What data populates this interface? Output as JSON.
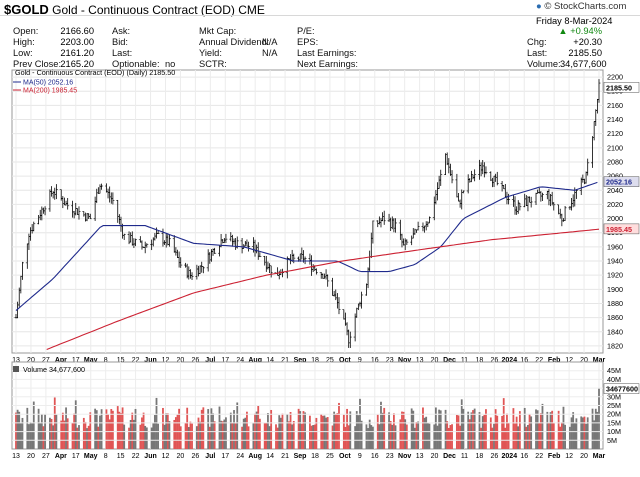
{
  "header": {
    "symbol": "$GOLD",
    "name": "Gold - Continuous Contract (EOD)",
    "exchange": "CME",
    "brand": "StockCharts.com",
    "date": "Friday   8-Mar-2024"
  },
  "quote": {
    "open_label": "Open:",
    "open": "2166.60",
    "high_label": "High:",
    "high": "2203.00",
    "low_label": "Low:",
    "low": "2161.20",
    "prev_label": "Prev Close:",
    "prev": "2165.20",
    "ask_label": "Ask:",
    "ask": "",
    "bid_label": "Bid:",
    "bid": "",
    "last_label": "Last:",
    "last_mid": "",
    "opt_label": "Optionable:",
    "opt": "no",
    "mktcap_label": "Mkt Cap:",
    "mktcap": "",
    "div_label": "Annual Dividend:",
    "div": "N/A",
    "yield_label": "Yield:",
    "yield": "N/A",
    "sctr_label": "SCTR:",
    "sctr": "",
    "pe_label": "P/E:",
    "pe": "",
    "eps_label": "EPS:",
    "eps": "",
    "lastearn_label": "Last Earnings:",
    "lastearn": "",
    "nextearn_label": "Next Earnings:",
    "nextearn": "",
    "pct_change": "+0.94%",
    "chg_label": "Chg:",
    "chg": "+20.30",
    "last2_label": "Last:",
    "last2": "2185.50",
    "volume_label": "Volume:",
    "volume": "34,677,600"
  },
  "chart_data": [
    {
      "type": "line",
      "legend": [
        {
          "text": "Gold - Continuous Contract (EOD) (Daily) 2185.50",
          "color": "#000000"
        },
        {
          "text": "MA(50) 2052.16",
          "color": "#1f2a8c"
        },
        {
          "text": "MA(200) 1985.45",
          "color": "#cc2233"
        }
      ],
      "ylim": [
        1810,
        2210
      ],
      "y_ticks": [
        1820,
        1840,
        1860,
        1880,
        1900,
        1920,
        1940,
        1960,
        1980,
        2000,
        2020,
        2040,
        2060,
        2080,
        2100,
        2120,
        2140,
        2160,
        2180,
        2200
      ],
      "last_price_label": "2185.50",
      "ma50_label": "2052.16",
      "ma200_label": "1985.45",
      "x_ticks": [
        "13",
        "20",
        "27",
        "Apr",
        "17",
        "May",
        "8",
        "15",
        "22",
        "Jun",
        "12",
        "20",
        "26",
        "Jul",
        "17",
        "24",
        "Aug",
        "14",
        "21",
        "Sep",
        "18",
        "25",
        "Oct",
        "9",
        "16",
        "23",
        "Nov",
        "13",
        "20",
        "Dec",
        "11",
        "18",
        "26",
        "2024",
        "16",
        "22",
        "Feb",
        "12",
        "20",
        "Mar"
      ],
      "price_anchors": {
        "x": [
          "2023-03-13",
          "2023-03-17",
          "2023-03-21",
          "2023-04-05",
          "2023-04-13",
          "2023-04-28",
          "2023-05-04",
          "2023-05-12",
          "2023-05-19",
          "2023-05-30",
          "2023-06-09",
          "2023-06-16",
          "2023-06-23",
          "2023-06-29",
          "2023-07-07",
          "2023-07-13",
          "2023-07-20",
          "2023-07-27",
          "2023-08-07",
          "2023-08-21",
          "2023-08-29",
          "2023-09-07",
          "2023-09-14",
          "2023-09-20",
          "2023-09-28",
          "2023-10-05",
          "2023-10-12",
          "2023-10-16",
          "2023-10-20",
          "2023-10-27",
          "2023-11-03",
          "2023-11-08",
          "2023-11-16",
          "2023-11-24",
          "2023-12-01",
          "2023-12-04",
          "2023-12-12",
          "2023-12-15",
          "2023-12-21",
          "2023-12-27",
          "2024-01-08",
          "2024-01-17",
          "2024-01-24",
          "2024-02-05",
          "2024-02-14",
          "2024-02-21",
          "2024-02-29",
          "2024-03-05",
          "2024-03-08"
        ],
        "y": [
          1860,
          1935,
          1980,
          2040,
          2020,
          2000,
          2050,
          2025,
          1975,
          1960,
          1975,
          1965,
          1935,
          1920,
          1935,
          1955,
          1975,
          1965,
          1960,
          1920,
          1940,
          1945,
          1930,
          1920,
          1880,
          1830,
          1885,
          1910,
          1990,
          2000,
          1990,
          1960,
          1980,
          2000,
          2060,
          2090,
          2020,
          2040,
          2060,
          2075,
          2040,
          2015,
          2025,
          2035,
          2000,
          2030,
          2060,
          2135,
          2185
        ]
      },
      "ma50_anchors": {
        "x": [
          "2023-03-13",
          "2023-04-05",
          "2023-05-05",
          "2023-06-01",
          "2023-07-01",
          "2023-08-01",
          "2023-09-01",
          "2023-09-28",
          "2023-10-12",
          "2023-10-30",
          "2023-11-15",
          "2023-12-01",
          "2023-12-15",
          "2024-01-10",
          "2024-02-01",
          "2024-02-22",
          "2024-03-08"
        ],
        "y": [
          1870,
          1915,
          1990,
          1990,
          1965,
          1960,
          1940,
          1940,
          1925,
          1925,
          1935,
          1960,
          2000,
          2030,
          2045,
          2040,
          2052
        ]
      },
      "ma200_anchors": {
        "x": [
          "2023-04-01",
          "2023-05-15",
          "2023-07-01",
          "2023-08-15",
          "2023-10-01",
          "2023-11-15",
          "2024-01-01",
          "2024-02-15",
          "2024-03-08"
        ],
        "y": [
          1815,
          1855,
          1895,
          1920,
          1940,
          1955,
          1970,
          1980,
          1985
        ]
      }
    },
    {
      "type": "bar",
      "legend": [
        {
          "text": "Volume 34,677,600",
          "color": "#333333"
        }
      ],
      "y_ticks_labels": [
        "45M",
        "40M",
        "35M",
        "30M",
        "25M",
        "20M",
        "15M",
        "10M",
        "5M"
      ],
      "y_ticks_values": [
        45,
        40,
        35,
        30,
        25,
        20,
        15,
        10,
        5
      ],
      "last_volume_label": "34677600",
      "ylim": [
        0,
        50
      ],
      "unit": "M"
    }
  ]
}
